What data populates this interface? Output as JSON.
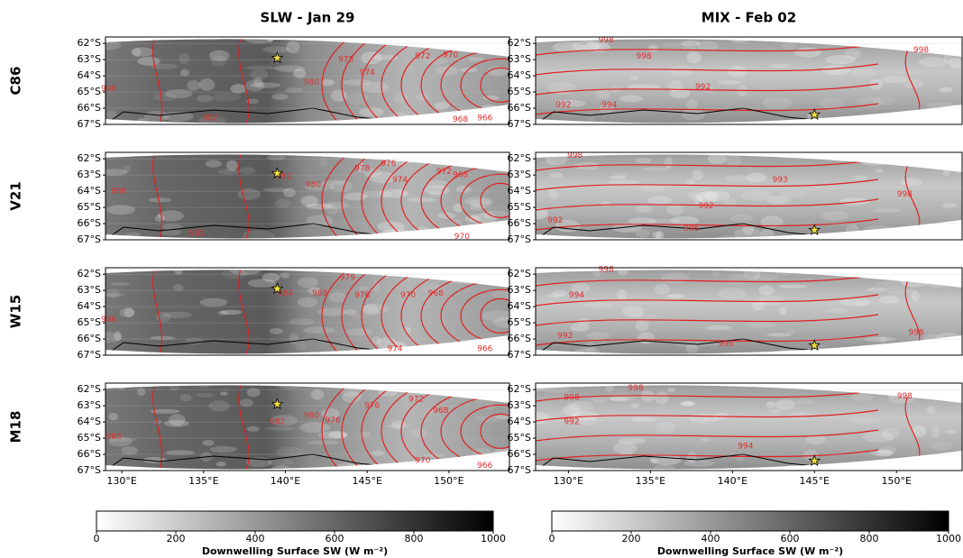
{
  "columns": [
    {
      "title": "SLW - Jan 29",
      "lon_lim": [
        129,
        153.7
      ],
      "site": {
        "lon": 139.5,
        "lat": -62.9
      }
    },
    {
      "title": "MIX - Feb 02",
      "lon_lim": [
        128,
        154
      ],
      "site": {
        "lon": 145,
        "lat": -66.4
      }
    }
  ],
  "rows": [
    {
      "label": "C86",
      "panels": [
        {
          "contour_labels": [
            {
              "value": 986,
              "lon": 129.2,
              "lat": -64.8
            },
            {
              "value": 980,
              "lon": 141.6,
              "lat": -64.4
            },
            {
              "value": 978,
              "lon": 143.7,
              "lat": -63.0
            },
            {
              "value": 974,
              "lon": 145,
              "lat": -63.8
            },
            {
              "value": 972,
              "lon": 148.4,
              "lat": -62.8
            },
            {
              "value": 970,
              "lon": 150.1,
              "lat": -62.7
            },
            {
              "value": 982,
              "lon": 135.4,
              "lat": -66.6
            },
            {
              "value": 968,
              "lon": 150.7,
              "lat": -66.7
            },
            {
              "value": 966,
              "lon": 152.2,
              "lat": -66.6
            }
          ]
        },
        {
          "contour_labels": [
            {
              "value": 998,
              "lon": 132.3,
              "lat": -61.8
            },
            {
              "value": 998,
              "lon": 134.6,
              "lat": -62.8
            },
            {
              "value": 992,
              "lon": 138.2,
              "lat": -64.7
            },
            {
              "value": 992,
              "lon": 129.7,
              "lat": -65.8
            },
            {
              "value": 994,
              "lon": 132.5,
              "lat": -65.8
            },
            {
              "value": 998,
              "lon": 151.5,
              "lat": -62.4
            }
          ]
        }
      ]
    },
    {
      "label": "V21",
      "panels": [
        {
          "contour_labels": [
            {
              "value": 986,
              "lon": 129.8,
              "lat": -64.0
            },
            {
              "value": 982,
              "lon": 134.6,
              "lat": -66.6
            },
            {
              "value": 982,
              "lon": 139.9,
              "lat": -63.1
            },
            {
              "value": 980,
              "lon": 141.7,
              "lat": -63.6
            },
            {
              "value": 978,
              "lon": 144.7,
              "lat": -62.6
            },
            {
              "value": 976,
              "lon": 146.3,
              "lat": -62.3
            },
            {
              "value": 974,
              "lon": 147,
              "lat": -63.3
            },
            {
              "value": 972,
              "lon": 149.7,
              "lat": -62.8
            },
            {
              "value": 968,
              "lon": 150.7,
              "lat": -63.0
            },
            {
              "value": 970,
              "lon": 150.8,
              "lat": -66.8
            }
          ]
        },
        {
          "contour_labels": [
            {
              "value": 998,
              "lon": 130.4,
              "lat": -61.8
            },
            {
              "value": 998,
              "lon": 150.5,
              "lat": -64.2
            },
            {
              "value": 992,
              "lon": 129.2,
              "lat": -65.8
            },
            {
              "value": 992,
              "lon": 138.4,
              "lat": -64.9
            },
            {
              "value": 993,
              "lon": 142.9,
              "lat": -63.3
            },
            {
              "value": 996,
              "lon": 137.5,
              "lat": -66.3
            }
          ]
        }
      ]
    },
    {
      "label": "W15",
      "panels": [
        {
          "contour_labels": [
            {
              "value": 986,
              "lon": 129.2,
              "lat": -64.8
            },
            {
              "value": 984,
              "lon": 140,
              "lat": -63.2
            },
            {
              "value": 988,
              "lon": 142.1,
              "lat": -63.2
            },
            {
              "value": 979,
              "lon": 143.8,
              "lat": -62.2
            },
            {
              "value": 976,
              "lon": 144.7,
              "lat": -63.3
            },
            {
              "value": 970,
              "lon": 147.5,
              "lat": -63.3
            },
            {
              "value": 968,
              "lon": 149.2,
              "lat": -63.2
            },
            {
              "value": 974,
              "lon": 146.7,
              "lat": -66.6
            },
            {
              "value": 966,
              "lon": 152.2,
              "lat": -66.6
            }
          ]
        },
        {
          "contour_labels": [
            {
              "value": 998,
              "lon": 132.3,
              "lat": -61.7
            },
            {
              "value": 994,
              "lon": 130.5,
              "lat": -63.3
            },
            {
              "value": 992,
              "lon": 129.8,
              "lat": -65.8
            },
            {
              "value": 996,
              "lon": 139.6,
              "lat": -66.3
            },
            {
              "value": 998,
              "lon": 151.2,
              "lat": -65.6
            }
          ]
        }
      ]
    },
    {
      "label": "M18",
      "panels": [
        {
          "contour_labels": [
            {
              "value": 986,
              "lon": 129.5,
              "lat": -64.9
            },
            {
              "value": 982,
              "lon": 139.5,
              "lat": -64.0
            },
            {
              "value": 980,
              "lon": 141.6,
              "lat": -63.6
            },
            {
              "value": 976,
              "lon": 142.9,
              "lat": -63.9
            },
            {
              "value": 976,
              "lon": 145.3,
              "lat": -63.0
            },
            {
              "value": 972,
              "lon": 148,
              "lat": -62.6
            },
            {
              "value": 968,
              "lon": 149.5,
              "lat": -63.3
            },
            {
              "value": 970,
              "lon": 148.4,
              "lat": -66.4
            },
            {
              "value": 966,
              "lon": 152.2,
              "lat": -66.7
            }
          ]
        },
        {
          "contour_labels": [
            {
              "value": 998,
              "lon": 130.2,
              "lat": -62.5
            },
            {
              "value": 998,
              "lon": 134.1,
              "lat": -61.9
            },
            {
              "value": 992,
              "lon": 130.2,
              "lat": -64.0
            },
            {
              "value": 994,
              "lon": 140.8,
              "lat": -65.5
            },
            {
              "value": 998,
              "lon": 150.5,
              "lat": -62.4
            }
          ]
        }
      ]
    }
  ],
  "lat_lim": [
    -67,
    -61.6
  ],
  "lat_ticks": [
    {
      "value": -62,
      "label": "62°S"
    },
    {
      "value": -63,
      "label": "63°S"
    },
    {
      "value": -64,
      "label": "64°S"
    },
    {
      "value": -65,
      "label": "65°S"
    },
    {
      "value": -66,
      "label": "66°S"
    },
    {
      "value": -67,
      "label": "67°S"
    }
  ],
  "lon_ticks": [
    {
      "value": 130,
      "label": "130°E"
    },
    {
      "value": 135,
      "label": "135°E"
    },
    {
      "value": 140,
      "label": "140°E"
    },
    {
      "value": 145,
      "label": "145°E"
    },
    {
      "value": 150,
      "label": "150°E"
    }
  ],
  "colorbar": {
    "label": "Downwelling Surface SW (W m⁻²)",
    "lim": [
      0,
      1000
    ],
    "ticks": [
      0,
      200,
      400,
      600,
      800,
      1000
    ]
  }
}
